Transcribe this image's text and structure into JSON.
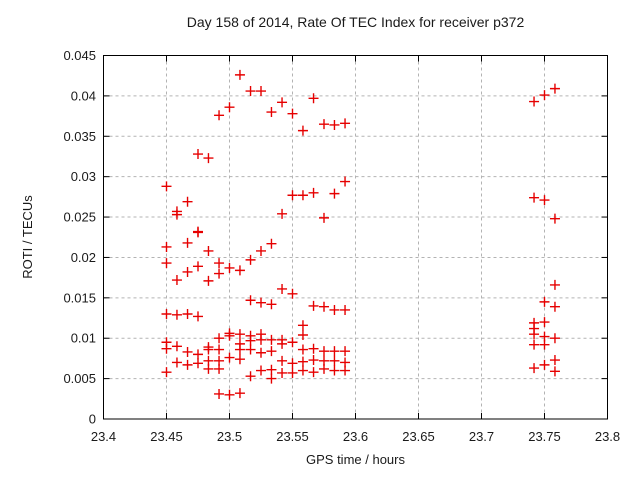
{
  "window": {
    "title": "gnuplot scatter output"
  },
  "chart_data": {
    "type": "scatter",
    "title": "Day 158 of 2014, Rate Of TEC Index for receiver p372",
    "xlabel": "GPS time / hours",
    "ylabel": "ROTI / TECUs",
    "xlim": [
      23.4,
      23.8
    ],
    "ylim": [
      0,
      0.045
    ],
    "xticks": {
      "values": [
        23.4,
        23.45,
        23.5,
        23.55,
        23.6,
        23.65,
        23.7,
        23.75,
        23.8
      ],
      "labels": [
        "23.4",
        "23.45",
        "23.5",
        "23.55",
        "23.6",
        "23.65",
        "23.7",
        "23.75",
        "23.8"
      ]
    },
    "yticks": {
      "values": [
        0,
        0.005,
        0.01,
        0.015,
        0.02,
        0.025,
        0.03,
        0.035,
        0.04,
        0.045
      ],
      "labels": [
        "0",
        "0.005",
        "0.01",
        "0.015",
        "0.02",
        "0.025",
        "0.03",
        "0.035",
        "0.04",
        "0.045"
      ]
    },
    "grid": true,
    "legend": "none",
    "marker": {
      "shape": "plus",
      "color": "#e60000",
      "size": 11
    },
    "series": [
      {
        "name": "ROTI",
        "points": [
          [
            23.5083,
            0.0426
          ],
          [
            23.5167,
            0.0406
          ],
          [
            23.525,
            0.0406
          ],
          [
            23.5,
            0.0386
          ],
          [
            23.4917,
            0.0376
          ],
          [
            23.5333,
            0.038
          ],
          [
            23.5417,
            0.0392
          ],
          [
            23.5667,
            0.0397
          ],
          [
            23.55,
            0.0378
          ],
          [
            23.5583,
            0.0357
          ],
          [
            23.575,
            0.0365
          ],
          [
            23.5833,
            0.0364
          ],
          [
            23.5917,
            0.0366
          ],
          [
            23.475,
            0.0328
          ],
          [
            23.4833,
            0.0323
          ],
          [
            23.45,
            0.0288
          ],
          [
            23.4667,
            0.0269
          ],
          [
            23.4583,
            0.0257
          ],
          [
            23.4583,
            0.0253
          ],
          [
            23.475,
            0.0231
          ],
          [
            23.5917,
            0.0294
          ],
          [
            23.55,
            0.0277
          ],
          [
            23.5583,
            0.0277
          ],
          [
            23.5667,
            0.028
          ],
          [
            23.5833,
            0.0279
          ],
          [
            23.5417,
            0.0254
          ],
          [
            23.575,
            0.0249
          ],
          [
            23.7417,
            0.0393
          ],
          [
            23.75,
            0.0401
          ],
          [
            23.7583,
            0.0409
          ],
          [
            23.7417,
            0.0274
          ],
          [
            23.75,
            0.0271
          ],
          [
            23.7583,
            0.0248
          ],
          [
            23.7583,
            0.0166
          ],
          [
            23.75,
            0.0145
          ],
          [
            23.7583,
            0.0139
          ],
          [
            23.7417,
            0.0119
          ],
          [
            23.75,
            0.012
          ],
          [
            23.7417,
            0.0112
          ],
          [
            23.7417,
            0.0105
          ],
          [
            23.75,
            0.0102
          ],
          [
            23.7583,
            0.01
          ],
          [
            23.7417,
            0.0092
          ],
          [
            23.75,
            0.0092
          ],
          [
            23.7583,
            0.0073
          ],
          [
            23.75,
            0.0067
          ],
          [
            23.7417,
            0.0063
          ],
          [
            23.7583,
            0.0059
          ],
          [
            23.45,
            0.0213
          ],
          [
            23.4667,
            0.0218
          ],
          [
            23.475,
            0.0232
          ],
          [
            23.4833,
            0.0208
          ],
          [
            23.525,
            0.0208
          ],
          [
            23.5333,
            0.0217
          ],
          [
            23.5167,
            0.0197
          ],
          [
            23.45,
            0.0193
          ],
          [
            23.4917,
            0.0193
          ],
          [
            23.475,
            0.0189
          ],
          [
            23.5,
            0.0187
          ],
          [
            23.5083,
            0.0184
          ],
          [
            23.4667,
            0.0182
          ],
          [
            23.4917,
            0.018
          ],
          [
            23.4583,
            0.0172
          ],
          [
            23.4833,
            0.0171
          ],
          [
            23.5417,
            0.0161
          ],
          [
            23.55,
            0.0155
          ],
          [
            23.5167,
            0.0147
          ],
          [
            23.525,
            0.0144
          ],
          [
            23.5333,
            0.0142
          ],
          [
            23.5667,
            0.014
          ],
          [
            23.575,
            0.0139
          ],
          [
            23.5833,
            0.0135
          ],
          [
            23.5917,
            0.0135
          ],
          [
            23.45,
            0.013
          ],
          [
            23.4583,
            0.0129
          ],
          [
            23.4667,
            0.013
          ],
          [
            23.475,
            0.0127
          ],
          [
            23.5583,
            0.0116
          ],
          [
            23.5583,
            0.0104
          ],
          [
            23.45,
            0.0095
          ],
          [
            23.45,
            0.0087
          ],
          [
            23.4583,
            0.009
          ],
          [
            23.4667,
            0.0083
          ],
          [
            23.475,
            0.008
          ],
          [
            23.4833,
            0.0086
          ],
          [
            23.4833,
            0.0089
          ],
          [
            23.4583,
            0.007
          ],
          [
            23.4667,
            0.0067
          ],
          [
            23.475,
            0.0069
          ],
          [
            23.4833,
            0.0072
          ],
          [
            23.4833,
            0.0062
          ],
          [
            23.45,
            0.0058
          ],
          [
            23.4917,
            0.01
          ],
          [
            23.5,
            0.0106
          ],
          [
            23.5,
            0.0103
          ],
          [
            23.5083,
            0.0105
          ],
          [
            23.5167,
            0.0103
          ],
          [
            23.5167,
            0.0097
          ],
          [
            23.525,
            0.0105
          ],
          [
            23.525,
            0.0098
          ],
          [
            23.4917,
            0.0086
          ],
          [
            23.5083,
            0.0093
          ],
          [
            23.5083,
            0.0086
          ],
          [
            23.5167,
            0.0086
          ],
          [
            23.525,
            0.0082
          ],
          [
            23.4917,
            0.0072
          ],
          [
            23.5,
            0.0076
          ],
          [
            23.5083,
            0.0074
          ],
          [
            23.4917,
            0.0062
          ],
          [
            23.5167,
            0.0053
          ],
          [
            23.525,
            0.006
          ],
          [
            23.5333,
            0.005
          ],
          [
            23.4917,
            0.0031
          ],
          [
            23.5,
            0.003
          ],
          [
            23.5083,
            0.0032
          ],
          [
            23.5333,
            0.0098
          ],
          [
            23.5417,
            0.0098
          ],
          [
            23.5417,
            0.0093
          ],
          [
            23.55,
            0.0095
          ],
          [
            23.5333,
            0.0084
          ],
          [
            23.5583,
            0.0086
          ],
          [
            23.5667,
            0.0087
          ],
          [
            23.575,
            0.0084
          ],
          [
            23.5833,
            0.0084
          ],
          [
            23.5917,
            0.0084
          ],
          [
            23.5417,
            0.0072
          ],
          [
            23.55,
            0.0069
          ],
          [
            23.5583,
            0.0071
          ],
          [
            23.5667,
            0.0073
          ],
          [
            23.575,
            0.0072
          ],
          [
            23.5833,
            0.0072
          ],
          [
            23.5917,
            0.007
          ],
          [
            23.5333,
            0.0061
          ],
          [
            23.5417,
            0.0057
          ],
          [
            23.55,
            0.0057
          ],
          [
            23.5583,
            0.006
          ],
          [
            23.5667,
            0.0058
          ],
          [
            23.575,
            0.0062
          ],
          [
            23.5833,
            0.006
          ],
          [
            23.5917,
            0.006
          ]
        ]
      }
    ],
    "colors": {
      "marker": "#e60000",
      "grid": "#b3b3b3",
      "axis": "#000000",
      "background": "#ffffff"
    }
  }
}
